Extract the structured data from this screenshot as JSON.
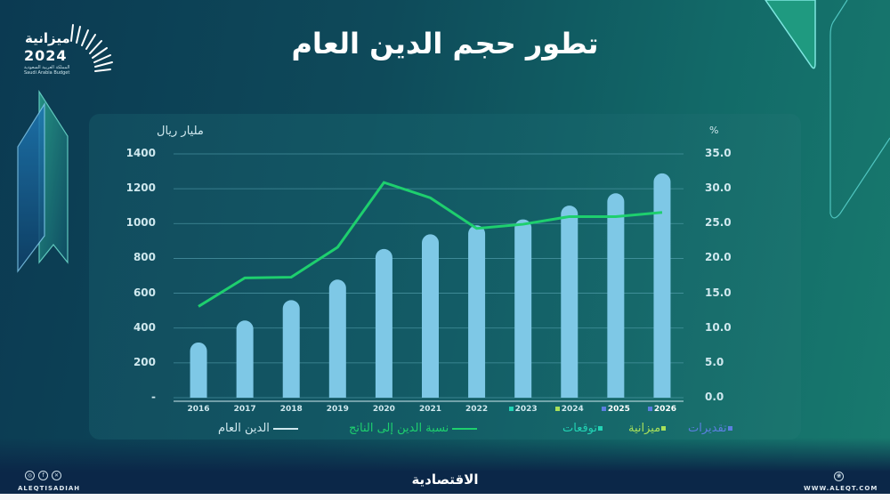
{
  "header": {
    "title": "تطور حجم الدين العام",
    "logo": {
      "text_ar": "ميزانية",
      "year": "2024",
      "subtitle_ar": "المملكة العربية السعودية",
      "subtitle_en": "Saudi Arabia Budget"
    }
  },
  "axes": {
    "left_label": "مليار ريال",
    "right_label": "%",
    "left_ticks": [
      "1400",
      "1200",
      "1000",
      "800",
      "600",
      "400",
      "200",
      "-"
    ],
    "right_ticks": [
      "35.0",
      "30.0",
      "25.0",
      "20.0",
      "15.0",
      "10.0",
      "5.0",
      "0.0"
    ]
  },
  "x_labels": [
    "2016",
    "2017",
    "2018",
    "2019",
    "2020",
    "2021",
    "2022",
    "2023",
    "2024",
    "2025",
    "2026"
  ],
  "legend": {
    "debt_label": "الدين العام",
    "ratio_label": "نسبة الدين إلى الناتج",
    "forecast_label": "توقعات",
    "budget_label": "ميزانية",
    "estimates_label": "تقديرات"
  },
  "colors": {
    "bar": "#7ec8e6",
    "line": "#1ecf6e",
    "forecast": "#22d3b4",
    "budget": "#a8e05a",
    "estimates": "#5b7fe0",
    "grid": "#5aa6b4"
  },
  "footer": {
    "left_handle": "ALEQTISADIAH",
    "center_brand": "الاقتصادية",
    "right_url": "WWW.ALEQT.COM",
    "social_icons": [
      "instagram-icon",
      "facebook-icon",
      "x-icon"
    ]
  },
  "chart_data": {
    "type": "bar",
    "title": "تطور حجم الدين العام",
    "categories": [
      "2016",
      "2017",
      "2018",
      "2019",
      "2020",
      "2021",
      "2022",
      "2023",
      "2024",
      "2025",
      "2026"
    ],
    "series": [
      {
        "name": "الدين العام",
        "type": "bar",
        "axis": "left",
        "unit": "مليار ريال",
        "values": [
          317,
          443,
          560,
          678,
          854,
          938,
          990,
          1024,
          1103,
          1174,
          1288
        ]
      },
      {
        "name": "نسبة الدين إلى الناتج",
        "type": "line",
        "axis": "right",
        "unit": "%",
        "values": [
          13.1,
          17.2,
          17.3,
          21.6,
          30.9,
          28.7,
          24.3,
          24.9,
          26.0,
          26.0,
          26.6
        ]
      }
    ],
    "category_annotations": {
      "2023": "توقعات",
      "2024": "ميزانية",
      "2025": "تقديرات",
      "2026": "تقديرات"
    },
    "ylabel": "مليار ريال",
    "ylabel_right": "%",
    "ylim": [
      0,
      1400
    ],
    "ylim_right": [
      0,
      35
    ],
    "grid": true,
    "legend_position": "bottom"
  }
}
